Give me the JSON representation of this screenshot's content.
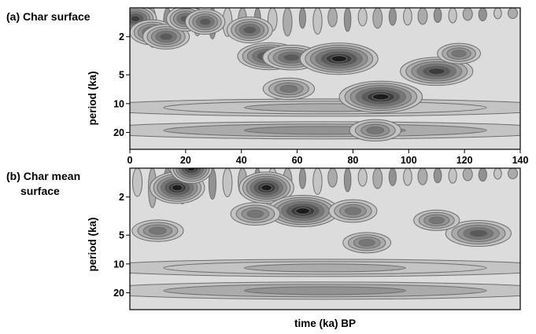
{
  "chart_data": [
    {
      "type": "heatmap",
      "title": "(a) Char surface",
      "xlabel": "",
      "ylabel": "period (ka)",
      "xlim": [
        0,
        140
      ],
      "x_ticks": [
        0,
        20,
        40,
        60,
        80,
        100,
        120,
        140
      ],
      "y_ticks": [
        2,
        5,
        10,
        20
      ],
      "y_scale": "log",
      "y_inverted": true,
      "ylim": [
        1,
        30
      ],
      "grid": false,
      "colormap": "grayscale (light = low power, black = high power)",
      "power_peaks": [
        {
          "time": 2,
          "period": 1.3,
          "level": 0.8
        },
        {
          "time": 8,
          "period": 1.8,
          "level": 0.7
        },
        {
          "time": 13,
          "period": 2.0,
          "level": 0.7
        },
        {
          "time": 20,
          "period": 1.3,
          "level": 0.7
        },
        {
          "time": 27,
          "period": 1.4,
          "level": 0.7
        },
        {
          "time": 43,
          "period": 1.7,
          "level": 0.75
        },
        {
          "time": 50,
          "period": 3.2,
          "level": 0.8
        },
        {
          "time": 58,
          "period": 3.3,
          "level": 0.7
        },
        {
          "time": 75,
          "period": 3.4,
          "level": 1.0
        },
        {
          "time": 90,
          "period": 8.5,
          "level": 1.0
        },
        {
          "time": 110,
          "period": 4.6,
          "level": 0.85
        },
        {
          "time": 57,
          "period": 7.0,
          "level": 0.55
        },
        {
          "time": 88,
          "period": 19,
          "level": 0.55
        },
        {
          "time": 118,
          "period": 3.0,
          "level": 0.5
        }
      ]
    },
    {
      "type": "heatmap",
      "title": "(b) Char mean surface",
      "xlabel": "time (ka) BP",
      "ylabel": "period (ka)",
      "xlim": [
        0,
        140
      ],
      "y_ticks": [
        2,
        5,
        10,
        20
      ],
      "y_scale": "log",
      "y_inverted": true,
      "ylim": [
        1,
        30
      ],
      "grid": false,
      "colormap": "grayscale (light = low power, black = high power)",
      "power_peaks": [
        {
          "time": 17,
          "period": 1.6,
          "level": 1.0
        },
        {
          "time": 22,
          "period": 1.0,
          "level": 0.95
        },
        {
          "time": 49,
          "period": 1.6,
          "level": 1.0
        },
        {
          "time": 62,
          "period": 2.8,
          "level": 1.0
        },
        {
          "time": 45,
          "period": 3.0,
          "level": 0.6
        },
        {
          "time": 80,
          "period": 2.8,
          "level": 0.6
        },
        {
          "time": 10,
          "period": 4.5,
          "level": 0.55
        },
        {
          "time": 125,
          "period": 4.8,
          "level": 0.75
        },
        {
          "time": 110,
          "period": 3.5,
          "level": 0.5
        },
        {
          "time": 85,
          "period": 6.0,
          "level": 0.5
        }
      ]
    }
  ],
  "colors": {
    "background": "#ffffff",
    "low_power": "#dcdcdc",
    "high_power": "#151515",
    "contour": "#6e6e6e"
  }
}
